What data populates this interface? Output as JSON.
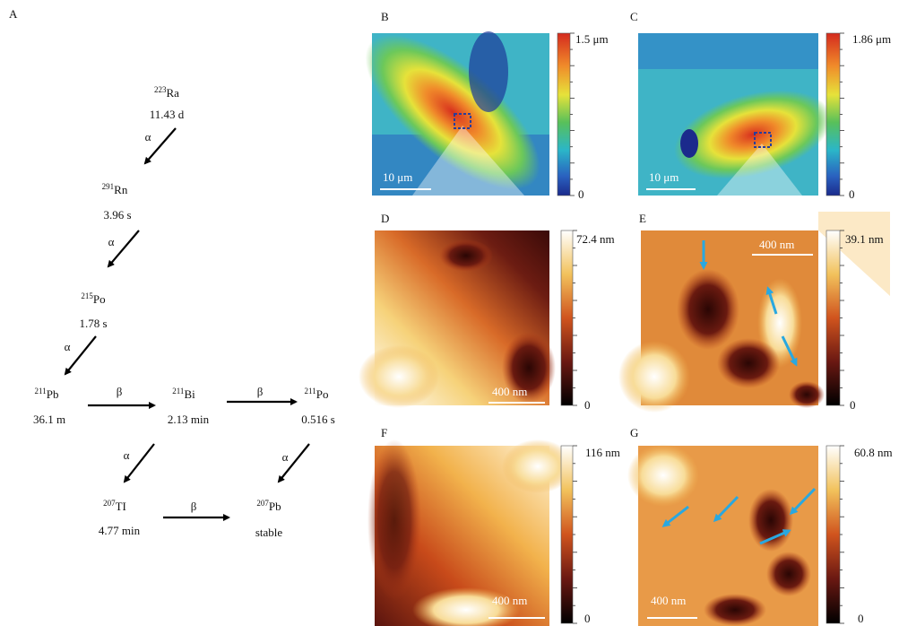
{
  "decay_chain": {
    "label": "A",
    "nodes": [
      {
        "mass": "223",
        "symbol": "Ra",
        "half_life": "11.43 d"
      },
      {
        "mass": "291",
        "symbol": "Rn",
        "half_life": "3.96 s"
      },
      {
        "mass": "215",
        "symbol": "Po",
        "half_life": "1.78 s"
      },
      {
        "mass": "211",
        "symbol": "Pb",
        "half_life": "36.1 m"
      },
      {
        "mass": "211",
        "symbol": "Bi",
        "half_life": "2.13 min"
      },
      {
        "mass": "211",
        "symbol": "Po",
        "half_life": "0.516 s"
      },
      {
        "mass": "207",
        "symbol": "TI",
        "half_life": "4.77 min"
      },
      {
        "mass": "207",
        "symbol": "Pb",
        "half_life": "stable"
      }
    ],
    "transitions": [
      "α",
      "α",
      "α",
      "β",
      "β",
      "α",
      "α",
      "β"
    ]
  },
  "panels": [
    {
      "label": "B",
      "scale_bar": "10 μm",
      "colorbar_max": "1.5 μm",
      "colorbar_min": "0"
    },
    {
      "label": "C",
      "scale_bar": "10 μm",
      "colorbar_max": "1.86 μm",
      "colorbar_min": "0"
    },
    {
      "label": "D",
      "scale_bar": "400 nm",
      "colorbar_max": "72.4 nm",
      "colorbar_min": "0"
    },
    {
      "label": "E",
      "scale_bar": "400 nm",
      "colorbar_max": "39.1 nm",
      "colorbar_min": "0"
    },
    {
      "label": "F",
      "scale_bar": "400 nm",
      "colorbar_max": "116 nm",
      "colorbar_min": "0"
    },
    {
      "label": "G",
      "scale_bar": "400 nm",
      "colorbar_max": "60.8 nm",
      "colorbar_min": "0"
    }
  ]
}
